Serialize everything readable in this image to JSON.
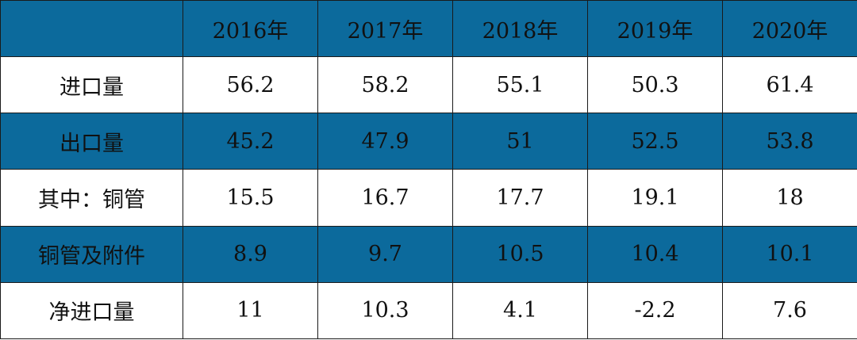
{
  "colors": {
    "header_and_band": "#0c6a9c",
    "plain_row": "#ffffff",
    "border": "#1a1a1a",
    "text": "#111111"
  },
  "chart_data": {
    "type": "table",
    "columns": [
      "",
      "2016年",
      "2017年",
      "2018年",
      "2019年",
      "2020年"
    ],
    "rows": [
      {
        "label": "进口量",
        "values": [
          "56.2",
          "58.2",
          "55.1",
          "50.3",
          "61.4"
        ],
        "shaded": false
      },
      {
        "label": "出口量",
        "values": [
          "45.2",
          "47.9",
          "51",
          "52.5",
          "53.8"
        ],
        "shaded": true
      },
      {
        "label": "其中：铜管",
        "values": [
          "15.5",
          "16.7",
          "17.7",
          "19.1",
          "18"
        ],
        "shaded": false
      },
      {
        "label": "铜管及附件",
        "values": [
          "8.9",
          "9.7",
          "10.5",
          "10.4",
          "10.1"
        ],
        "shaded": true
      },
      {
        "label": "净进口量",
        "values": [
          "11",
          "10.3",
          "4.1",
          "-2.2",
          "7.6"
        ],
        "shaded": false
      }
    ]
  }
}
